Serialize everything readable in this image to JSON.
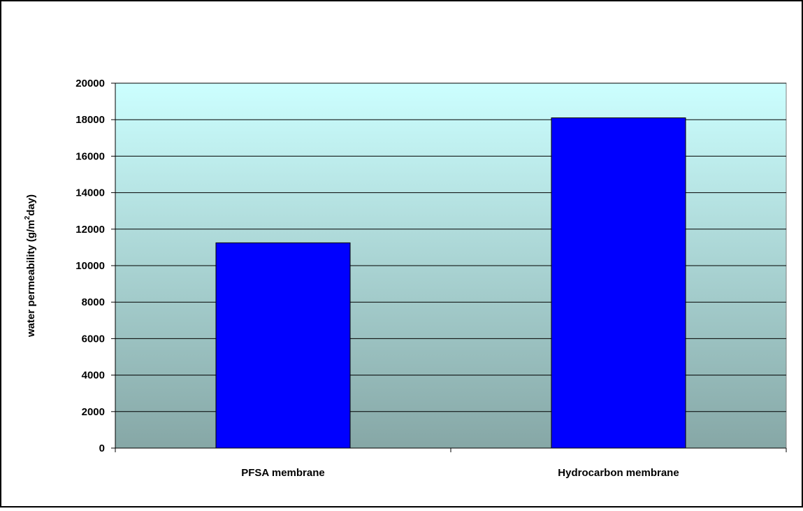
{
  "colors": {
    "bar": "#0000FF",
    "bar_stroke": "#000000",
    "plot_top": "#CCFFFF",
    "plot_bottom": "#86A7A6",
    "grid": "#000000"
  },
  "chart_data": {
    "type": "bar",
    "title": "",
    "xlabel": "",
    "ylabel": {
      "prefix": "water permeability (g/m",
      "superscript": "2",
      "suffix": "day)"
    },
    "categories": [
      "PFSA membrane",
      "Hydrocarbon membrane"
    ],
    "series": [
      {
        "values": [
          11250,
          18100
        ]
      }
    ],
    "ylim": [
      0,
      20000
    ],
    "yticks": [
      0,
      2000,
      4000,
      6000,
      8000,
      10000,
      12000,
      14000,
      16000,
      18000,
      20000
    ],
    "grid": true,
    "legend": "none"
  }
}
